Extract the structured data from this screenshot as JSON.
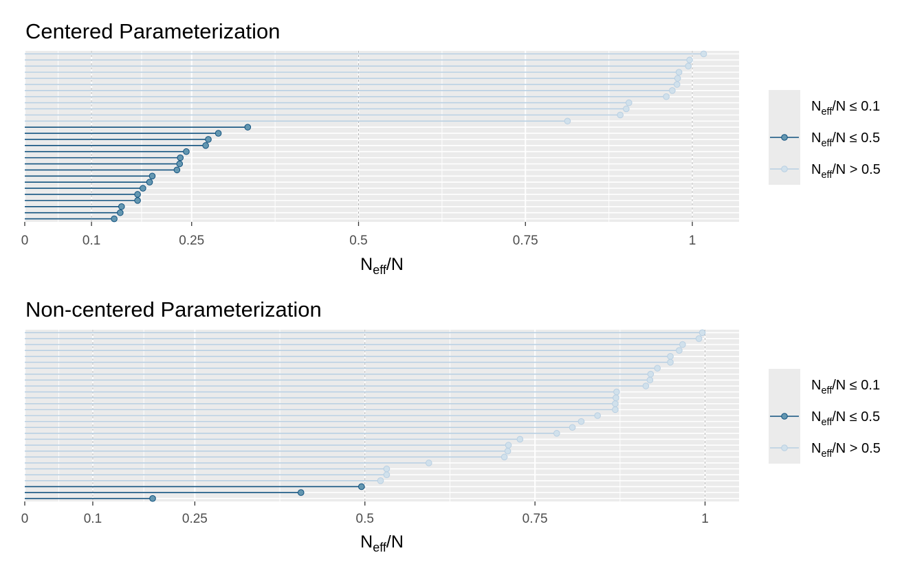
{
  "chart_data": [
    {
      "type": "lollipop",
      "title": "Centered Parameterization",
      "xlabel": "N_eff/N",
      "xlim": [
        0,
        1.07
      ],
      "xticks": [
        0,
        0.1,
        0.25,
        0.5,
        0.75,
        1
      ],
      "xtick_labels": [
        "0",
        "0.1",
        "0.25",
        "0.5",
        "0.75",
        "1"
      ],
      "grid": true,
      "legend_position": "right",
      "legend": [
        {
          "label": "N_eff/N ≤ 0.1",
          "color": ""
        },
        {
          "label": "N_eff/N ≤ 0.5",
          "color": "#10517e"
        },
        {
          "label": "N_eff/N > 0.5",
          "color": "#b8cfe2"
        }
      ],
      "values": [
        1.017,
        0.996,
        0.994,
        0.98,
        0.978,
        0.977,
        0.97,
        0.961,
        0.905,
        0.901,
        0.892,
        0.813,
        0.334,
        0.29,
        0.275,
        0.271,
        0.242,
        0.233,
        0.232,
        0.228,
        0.191,
        0.187,
        0.177,
        0.169,
        0.169,
        0.145,
        0.143,
        0.134
      ]
    },
    {
      "type": "lollipop",
      "title": "Non-centered Parameterization",
      "xlabel": "N_eff/N",
      "xlim": [
        0,
        1.05
      ],
      "xticks": [
        0,
        0.1,
        0.25,
        0.5,
        0.75,
        1
      ],
      "xtick_labels": [
        "0",
        "0.1",
        "0.25",
        "0.5",
        "0.75",
        "1"
      ],
      "grid": true,
      "legend_position": "right",
      "legend": [
        {
          "label": "N_eff/N ≤ 0.1",
          "color": ""
        },
        {
          "label": "N_eff/N ≤ 0.5",
          "color": "#10517e"
        },
        {
          "label": "N_eff/N > 0.5",
          "color": "#b8cfe2"
        }
      ],
      "values": [
        0.996,
        0.991,
        0.967,
        0.962,
        0.949,
        0.949,
        0.93,
        0.92,
        0.919,
        0.913,
        0.87,
        0.869,
        0.868,
        0.868,
        0.842,
        0.818,
        0.805,
        0.782,
        0.728,
        0.711,
        0.71,
        0.705,
        0.594,
        0.532,
        0.532,
        0.523,
        0.495,
        0.406,
        0.188
      ]
    }
  ],
  "colors": {
    "panel_bg": "#ebebeb",
    "grid": "#ffffff",
    "low": "#10517e",
    "low_fill": "#6497b1",
    "high": "#b8cfe2",
    "high_fill": "#d1e1ec",
    "ref_line": "#b3b3b3"
  }
}
